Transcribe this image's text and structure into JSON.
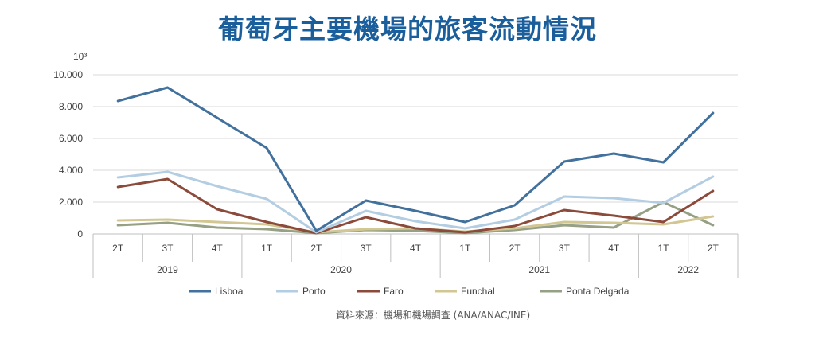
{
  "chart_data": {
    "type": "line",
    "title": "葡萄牙主要機場的旅客流動情況",
    "unit_label": "10³",
    "y_ticks": [
      "10.000",
      "8.000",
      "6.000",
      "4.000",
      "2.000",
      "0"
    ],
    "ylim": [
      0,
      10000
    ],
    "grid": true,
    "legend_position": "bottom",
    "categories": [
      "2T",
      "3T",
      "4T",
      "1T",
      "2T",
      "3T",
      "4T",
      "1T",
      "2T",
      "3T",
      "4T",
      "1T",
      "2T"
    ],
    "year_groups": [
      {
        "label": "2019",
        "span": 3
      },
      {
        "label": "2020",
        "span": 4
      },
      {
        "label": "2021",
        "span": 4
      },
      {
        "label": "2022",
        "span": 2
      }
    ],
    "series": [
      {
        "name": "Lisboa",
        "color": "#41719c",
        "values": [
          8350,
          9200,
          7300,
          5400,
          200,
          2100,
          1450,
          750,
          1800,
          4550,
          5050,
          4500,
          7600
        ]
      },
      {
        "name": "Porto",
        "color": "#b3cde3",
        "values": [
          3550,
          3900,
          3000,
          2200,
          100,
          1450,
          800,
          350,
          900,
          2350,
          2250,
          1950,
          3600
        ]
      },
      {
        "name": "Faro",
        "color": "#8b4a3a",
        "values": [
          2950,
          3450,
          1550,
          750,
          50,
          1050,
          350,
          100,
          500,
          1500,
          1150,
          750,
          2700
        ]
      },
      {
        "name": "Funchal",
        "color": "#d2c793",
        "values": [
          850,
          900,
          750,
          600,
          100,
          300,
          350,
          150,
          350,
          750,
          700,
          600,
          1100
        ]
      },
      {
        "name": "Ponta Delgada",
        "color": "#95a084",
        "values": [
          550,
          700,
          400,
          300,
          50,
          250,
          200,
          50,
          250,
          550,
          400,
          2000,
          550
        ]
      }
    ]
  },
  "source": "資料來源：機場和機場調查 (ANA/ANAC/INE)"
}
